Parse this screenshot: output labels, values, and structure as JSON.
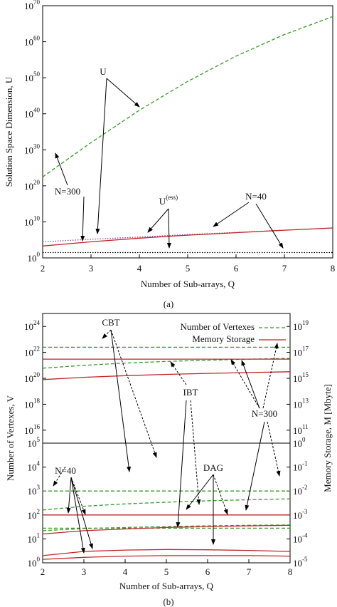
{
  "chart_data": [
    {
      "type": "line",
      "log_y": true,
      "xlabel": "Number of Sub-arrays, Q",
      "ylabel": "Solution Space Dimension, U",
      "caption": "(a)",
      "xlim": [
        2,
        8
      ],
      "xticks": [
        2,
        3,
        4,
        5,
        6,
        7,
        8
      ],
      "ylim": [
        1,
        1e+70
      ],
      "yticks": [
        {
          "value": 1,
          "label": "10^0"
        },
        {
          "value": 10000000000.0,
          "label": "10^10"
        },
        {
          "value": 1e+20,
          "label": "10^20"
        },
        {
          "value": 1e+30,
          "label": "10^30"
        },
        {
          "value": 1e+40,
          "label": "10^40"
        },
        {
          "value": 1e+50,
          "label": "10^50"
        },
        {
          "value": 1e+60,
          "label": "10^60"
        },
        {
          "value": 1e+70,
          "label": "10^70"
        }
      ],
      "x": [
        2,
        3,
        4,
        5,
        6,
        7,
        8
      ],
      "series": [
        {
          "color": "#3a9a2a",
          "style": "dashed",
          "values": [
            3e+22,
            1e+32,
            1e+41,
            1e+49,
            1e+56,
            1e+62,
            1e+67
          ]
        },
        {
          "color": "#9a3d9a",
          "style": "dotted",
          "values": [
            30000.0,
            150000.0,
            600000.0,
            3000000.0,
            12000000.0,
            50000000.0,
            200000000.0
          ]
        },
        {
          "color": "#c0262c",
          "style": "solid",
          "values": [
            2000.0,
            30000.0,
            300000.0,
            2000000.0,
            10000000.0,
            50000000.0,
            200000000.0
          ]
        },
        {
          "color": "#000000",
          "style": "dotted",
          "values": [
            30,
            30,
            30,
            30,
            30,
            30,
            30
          ]
        }
      ],
      "annotations": [
        "U",
        "N=300",
        "U^(ess)",
        "N=40"
      ]
    },
    {
      "type": "line",
      "log_y": true,
      "ylabel": "Number of Vertexes, V",
      "y2label": "Memory Storage, M  [Mbyte]",
      "xlim": [
        2,
        8
      ],
      "ylim": [
        1000000000000000.0,
        1e+25
      ],
      "yticks": [
        {
          "value": 1e+16,
          "label": "10^16"
        },
        {
          "value": 1e+18,
          "label": "10^18"
        },
        {
          "value": 1e+20,
          "label": "10^20"
        },
        {
          "value": 1e+22,
          "label": "10^22"
        },
        {
          "value": 1e+24,
          "label": "10^24"
        }
      ],
      "y2lim": [
        10000000000.0,
        1e+20
      ],
      "y2ticks": [
        {
          "value": 100000000000.0,
          "label": "10^11"
        },
        {
          "value": 10000000000000.0,
          "label": "10^13"
        },
        {
          "value": 1000000000000000.0,
          "label": "10^15"
        },
        {
          "value": 1e+17,
          "label": "10^17"
        },
        {
          "value": 1e+19,
          "label": "10^19"
        }
      ],
      "legend": [
        {
          "name": "Number of Vertexes",
          "color": "#3a9a2a",
          "style": "dashed"
        },
        {
          "name": "Memory Storage",
          "color": "#c0262c",
          "style": "solid"
        }
      ],
      "x": [
        2,
        3,
        4,
        5,
        6,
        7,
        8
      ],
      "series": [
        {
          "color": "#3a9a2a",
          "style": "dashed",
          "values": [
            2.5e+22,
            2.5e+22,
            2.5e+22,
            2.5e+22,
            2.5e+22,
            2.5e+22,
            2.5e+22
          ]
        },
        {
          "color": "#3a9a2a",
          "style": "dashed",
          "values": [
            6e+20,
            1e+21,
            1.5e+21,
            2e+21,
            2.5e+21,
            3e+21,
            3.5e+21
          ]
        },
        {
          "color": "#c0262c",
          "style": "solid",
          "axis": "y2",
          "values": [
            3e+16,
            3e+16,
            3e+16,
            3e+16,
            3e+16,
            3e+16,
            3e+16
          ]
        },
        {
          "color": "#c0262c",
          "style": "solid",
          "axis": "y2",
          "values": [
            800000000000000.0,
            1200000000000000.0,
            1600000000000000.0,
            2000000000000000.0,
            2400000000000000.0,
            2800000000000000.0,
            3200000000000000.0
          ]
        }
      ],
      "annotations": [
        "CBT",
        "IBT",
        "N=300"
      ]
    },
    {
      "type": "line",
      "log_y": true,
      "xlabel": "Number of Sub-arrays, Q",
      "caption": "(b)",
      "xlim": [
        2,
        8
      ],
      "xticks": [
        2,
        3,
        4,
        5,
        6,
        7,
        8
      ],
      "ylim": [
        1,
        100000.0
      ],
      "yticks": [
        {
          "value": 1,
          "label": "10^0"
        },
        {
          "value": 10,
          "label": "10^1"
        },
        {
          "value": 100,
          "label": "10^2"
        },
        {
          "value": 1000,
          "label": "10^3"
        },
        {
          "value": 10000,
          "label": "10^4"
        },
        {
          "value": 100000,
          "label": "10^5"
        }
      ],
      "y2lim": [
        1e-05,
        1
      ],
      "y2ticks": [
        {
          "value": 1e-05,
          "label": "10^-5"
        },
        {
          "value": 0.0001,
          "label": "10^-4"
        },
        {
          "value": 0.001,
          "label": "10^-3"
        },
        {
          "value": 0.01,
          "label": "10^-2"
        },
        {
          "value": 0.1,
          "label": "10^-1"
        },
        {
          "value": 1,
          "label": "10^0"
        }
      ],
      "x": [
        2,
        3,
        4,
        5,
        6,
        7,
        8
      ],
      "series": [
        {
          "color": "#3a9a2a",
          "style": "dashed",
          "values": [
            1000,
            1000,
            1000,
            1000,
            1000,
            1000,
            1000
          ]
        },
        {
          "color": "#3a9a2a",
          "style": "dashed",
          "values": [
            160,
            230,
            290,
            340,
            390,
            430,
            470
          ]
        },
        {
          "color": "#3a9a2a",
          "style": "dashed",
          "values": [
            22,
            27,
            30,
            33,
            35,
            37,
            38
          ]
        },
        {
          "color": "#3a9a2a",
          "style": "dashed",
          "values": [
            28,
            28,
            28,
            28,
            28,
            28,
            28
          ]
        },
        {
          "color": "#c0262c",
          "style": "solid",
          "axis": "y2",
          "values": [
            0.001,
            0.001,
            0.001,
            0.001,
            0.001,
            0.001,
            0.001
          ]
        },
        {
          "color": "#c0262c",
          "style": "solid",
          "axis": "y2",
          "values": [
            0.00016,
            0.00022,
            0.00026,
            0.0003,
            0.00033,
            0.00035,
            0.00037
          ]
        },
        {
          "color": "#c0262c",
          "style": "solid",
          "axis": "y2",
          "values": [
            2e-05,
            3e-05,
            3.4e-05,
            3.6e-05,
            3.5e-05,
            3.3e-05,
            3e-05
          ]
        },
        {
          "color": "#c0262c",
          "style": "solid",
          "axis": "y2",
          "values": [
            1.4e-05,
            1.7e-05,
            1.9e-05,
            2e-05,
            2e-05,
            2e-05,
            1.9e-05
          ]
        }
      ],
      "annotations": [
        "N=40",
        "DAG"
      ]
    }
  ]
}
